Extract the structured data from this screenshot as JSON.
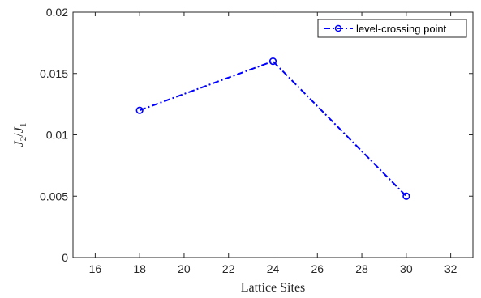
{
  "chart_data": {
    "type": "line",
    "xlabel": "Lattice Sites",
    "ylabel": {
      "base1": "J",
      "sub1": "2",
      "sep": "/",
      "base2": "J",
      "sub2": "1"
    },
    "xlim": [
      15,
      33
    ],
    "ylim": [
      0,
      0.02
    ],
    "xticks": [
      16,
      18,
      20,
      22,
      24,
      26,
      28,
      30,
      32
    ],
    "yticks": [
      0,
      0.005,
      0.01,
      0.015,
      0.02
    ],
    "ytick_labels": [
      "0",
      "0.005",
      "0.01",
      "0.015",
      "0.02"
    ],
    "grid": false,
    "legend_position": "top-right",
    "series": [
      {
        "name": "level-crossing point",
        "color": "#0000ff",
        "line_style": "dash-dot",
        "marker": "circle",
        "x": [
          18,
          24,
          30
        ],
        "y": [
          0.012,
          0.016,
          0.005
        ]
      }
    ]
  }
}
